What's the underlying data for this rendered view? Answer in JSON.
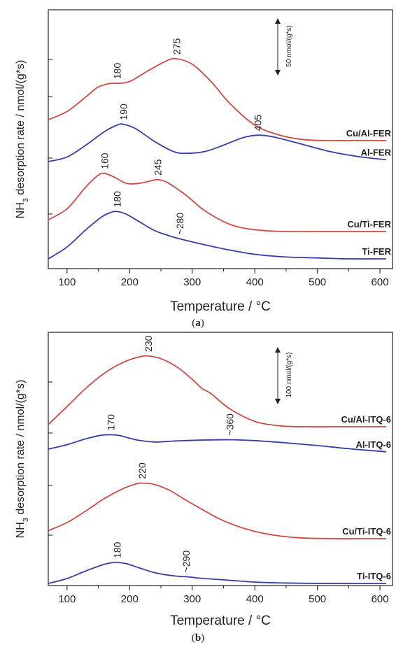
{
  "colors": {
    "red": "#cc4a43",
    "blue": "#3a3ca6",
    "axis": "#222222"
  },
  "chart_data": [
    {
      "type": "line",
      "panel_label": "(a)",
      "panel_letter": "a",
      "xlabel": "Temperature / °C",
      "ylabel_main": "NH",
      "ylabel_sub": "3",
      "ylabel_rest": " desorption rate / nmol/(g*s)",
      "xlim": [
        70,
        620
      ],
      "xticks": [
        "100",
        "200",
        "300",
        "400",
        "500",
        "600"
      ],
      "scale_bar": {
        "text": "50 nmol/(g*s)",
        "value": 50
      },
      "series": [
        {
          "name": "Cu/Al-FER",
          "color": "red",
          "x": [
            70,
            100,
            130,
            150,
            170,
            180,
            200,
            230,
            260,
            275,
            300,
            330,
            360,
            400,
            440,
            480,
            520,
            560,
            610
          ],
          "y": [
            153,
            162,
            178,
            189,
            193,
            193,
            195,
            207,
            218,
            220,
            214,
            195,
            171,
            147,
            136,
            131,
            130,
            130,
            130
          ],
          "peaks": [
            {
              "x": 180,
              "label": "180"
            },
            {
              "x": 275,
              "label": "275"
            }
          ]
        },
        {
          "name": "Al-FER",
          "color": "blue",
          "x": [
            70,
            100,
            130,
            160,
            180,
            190,
            210,
            240,
            270,
            290,
            320,
            350,
            380,
            405,
            430,
            470,
            520,
            570,
            610
          ],
          "y": [
            107,
            112,
            125,
            140,
            147,
            148,
            143,
            129,
            118,
            116,
            118,
            125,
            133,
            136,
            134,
            127,
            118,
            112,
            109
          ],
          "peaks": [
            {
              "x": 190,
              "label": "190"
            },
            {
              "x": 405,
              "label": "405"
            }
          ]
        },
        {
          "name": "Cu/Ti-FER",
          "color": "red",
          "x": [
            70,
            100,
            130,
            150,
            160,
            175,
            195,
            215,
            235,
            245,
            260,
            290,
            320,
            360,
            400,
            450,
            500,
            550,
            610
          ],
          "y": [
            43,
            55,
            79,
            92,
            94,
            90,
            83,
            83,
            86,
            87,
            84,
            70,
            53,
            38,
            32,
            30,
            30,
            30,
            30
          ],
          "peaks": [
            {
              "x": 160,
              "label": "160"
            },
            {
              "x": 245,
              "label": "245"
            }
          ]
        },
        {
          "name": "Ti-FER",
          "color": "blue",
          "x": [
            70,
            100,
            130,
            155,
            170,
            180,
            195,
            215,
            240,
            265,
            280,
            310,
            350,
            400,
            450,
            500,
            550,
            610
          ],
          "y": [
            0,
            13,
            32,
            46,
            51,
            52,
            49,
            41,
            31,
            25,
            22,
            17,
            11,
            5,
            2,
            1,
            0,
            0
          ],
          "peaks": [
            {
              "x": 180,
              "label": "180"
            },
            {
              "x": 280,
              "label": "~280"
            }
          ]
        }
      ]
    },
    {
      "type": "line",
      "panel_label": "(b)",
      "panel_letter": "b",
      "xlabel": "Temperature / °C",
      "ylabel_main": "NH",
      "ylabel_sub": "3",
      "ylabel_rest": " desorption rate / nmol/(g*s)",
      "xlim": [
        70,
        620
      ],
      "xticks": [
        "100",
        "200",
        "300",
        "400",
        "500",
        "600"
      ],
      "scale_bar": {
        "text": "100 nmol/(g*s)",
        "value": 100
      },
      "series": [
        {
          "name": "Cu/Al-ITQ-6",
          "color": "red",
          "x": [
            70,
            100,
            130,
            160,
            190,
            215,
            230,
            250,
            275,
            300,
            315,
            330,
            360,
            400,
            440,
            480,
            530,
            570,
            610
          ],
          "y": [
            355,
            395,
            436,
            470,
            494,
            506,
            508,
            502,
            484,
            456,
            436,
            424,
            390,
            362,
            352,
            350,
            350,
            350,
            350
          ],
          "peaks": [
            {
              "x": 230,
              "label": "230"
            }
          ]
        },
        {
          "name": "Al-ITQ-6",
          "color": "blue",
          "x": [
            70,
            100,
            130,
            155,
            170,
            185,
            210,
            240,
            270,
            310,
            360,
            400,
            450,
            500,
            550,
            610
          ],
          "y": [
            300,
            310,
            323,
            331,
            332,
            330,
            321,
            316,
            318,
            320,
            321,
            319,
            314,
            308,
            301,
            294
          ],
          "peaks": [
            {
              "x": 170,
              "label": "170"
            },
            {
              "x": 360,
              "label": "~360"
            }
          ]
        },
        {
          "name": "Cu/Ti-ITQ-6",
          "color": "red",
          "x": [
            70,
            100,
            130,
            160,
            190,
            210,
            220,
            240,
            265,
            290,
            320,
            350,
            390,
            430,
            470,
            520,
            570,
            610
          ],
          "y": [
            118,
            136,
            162,
            190,
            212,
            222,
            224,
            221,
            207,
            186,
            162,
            140,
            120,
            108,
            102,
            100,
            100,
            100
          ],
          "peaks": [
            {
              "x": 220,
              "label": "220"
            }
          ]
        },
        {
          "name": "Ti-ITQ-6",
          "color": "blue",
          "x": [
            70,
            100,
            130,
            160,
            175,
            180,
            195,
            215,
            240,
            270,
            290,
            320,
            360,
            400,
            450,
            500,
            550,
            610
          ],
          "y": [
            0,
            11,
            28,
            43,
            47,
            47,
            44,
            35,
            24,
            17,
            15,
            11,
            7,
            3,
            1,
            0,
            0,
            0
          ],
          "peaks": [
            {
              "x": 180,
              "label": "180"
            },
            {
              "x": 290,
              "label": "~290"
            }
          ]
        }
      ]
    }
  ]
}
